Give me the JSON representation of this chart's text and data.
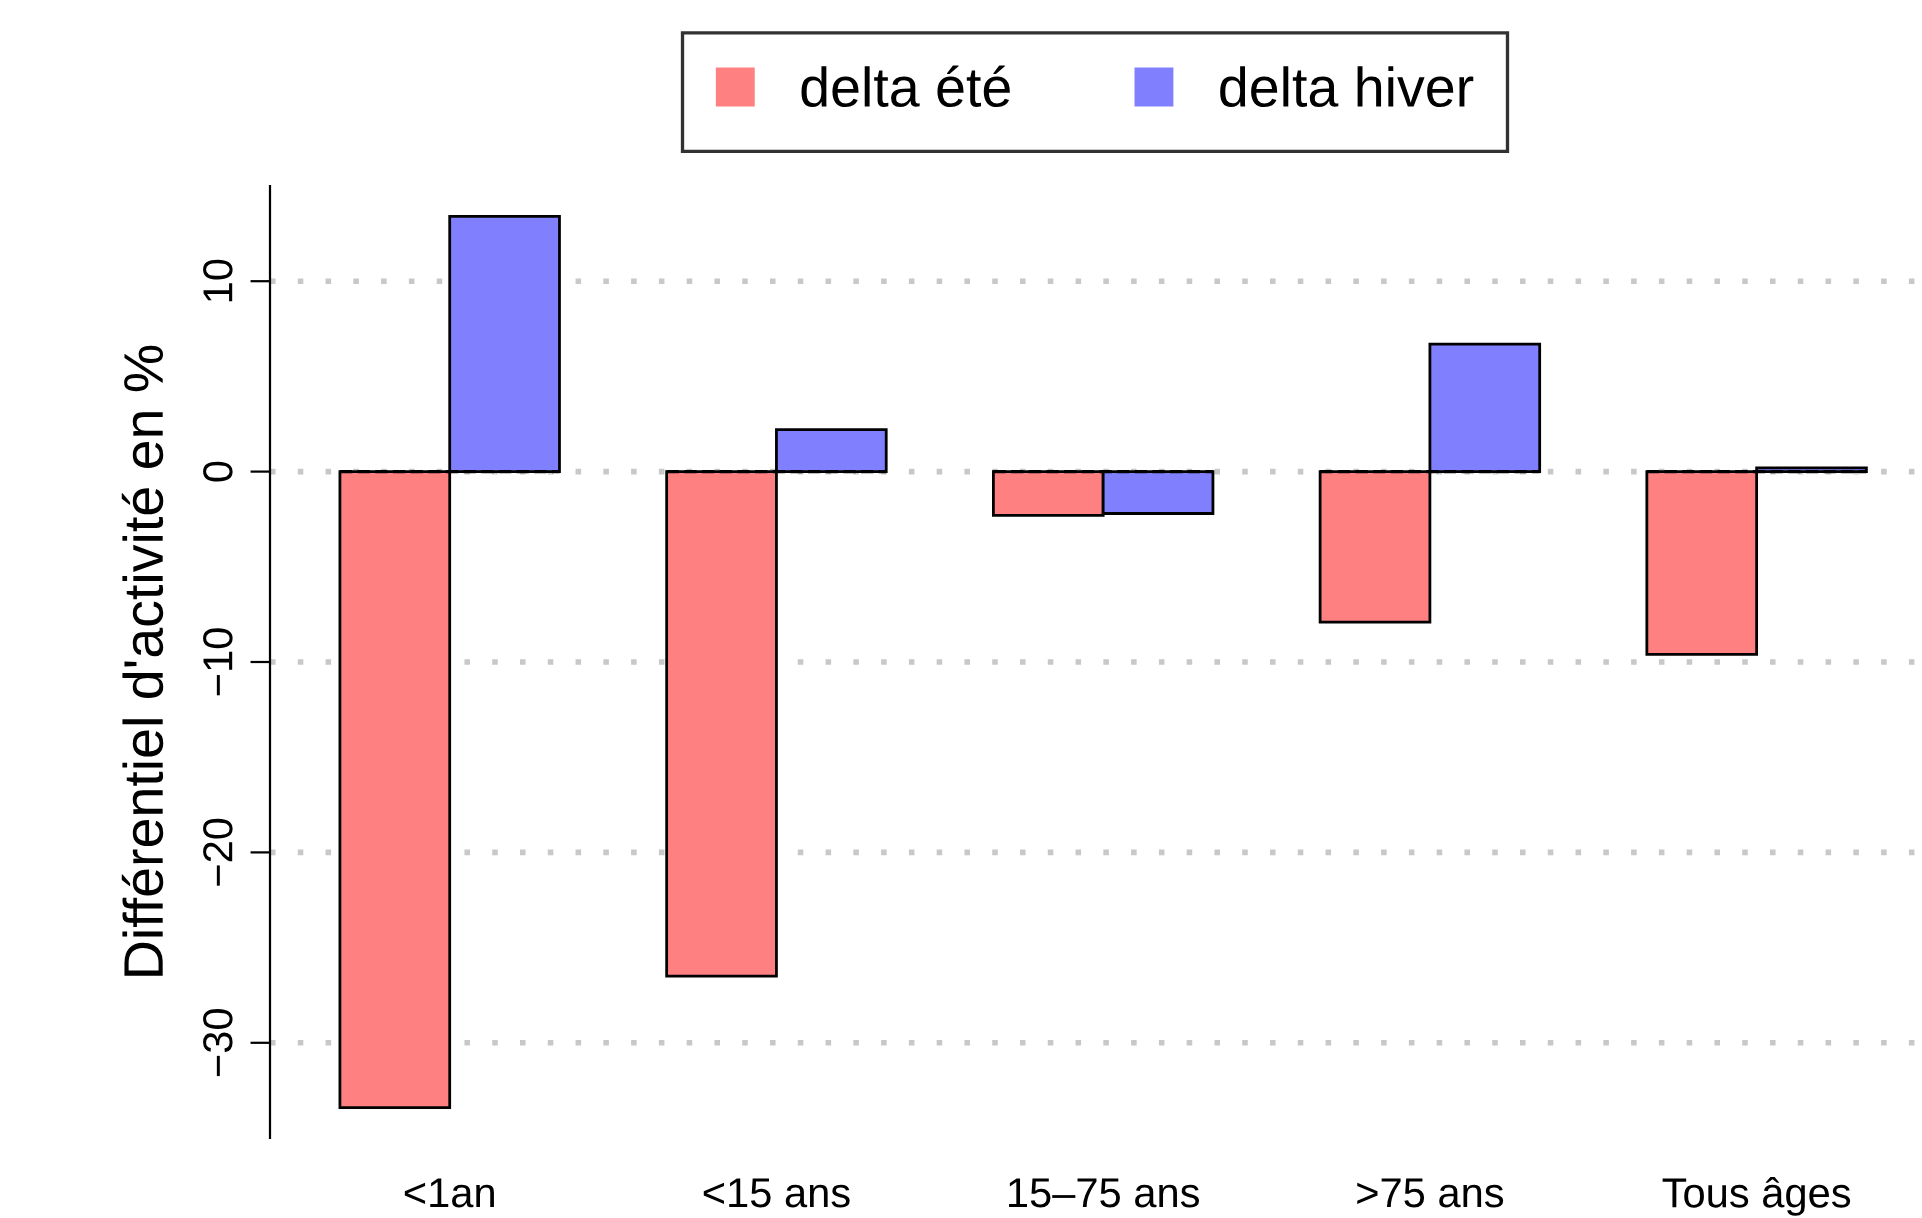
{
  "chart_data": {
    "type": "bar",
    "ylabel": "Différentiel d'activité en %",
    "categories": [
      "<1an",
      "<15 ans",
      "15–75 ans",
      ">75 ans",
      "Tous âges"
    ],
    "series": [
      {
        "name": "delta été",
        "color": "#ff8080",
        "values": [
          -33.4,
          -26.5,
          -2.3,
          -7.9,
          -9.6
        ]
      },
      {
        "name": "delta hiver",
        "color": "#8080ff",
        "values": [
          13.4,
          2.2,
          -2.2,
          6.7,
          0.2
        ]
      }
    ],
    "ylim": [
      -35,
      15
    ],
    "yticks": [
      {
        "value": -30,
        "label": "−30"
      },
      {
        "value": -20,
        "label": "−20"
      },
      {
        "value": -10,
        "label": "−10"
      },
      0,
      10
    ],
    "grid": "y",
    "legend": "top",
    "ref_lines": [
      {
        "axis": "y",
        "value": 0,
        "line_style": "dashed",
        "color": "#000000"
      }
    ]
  }
}
